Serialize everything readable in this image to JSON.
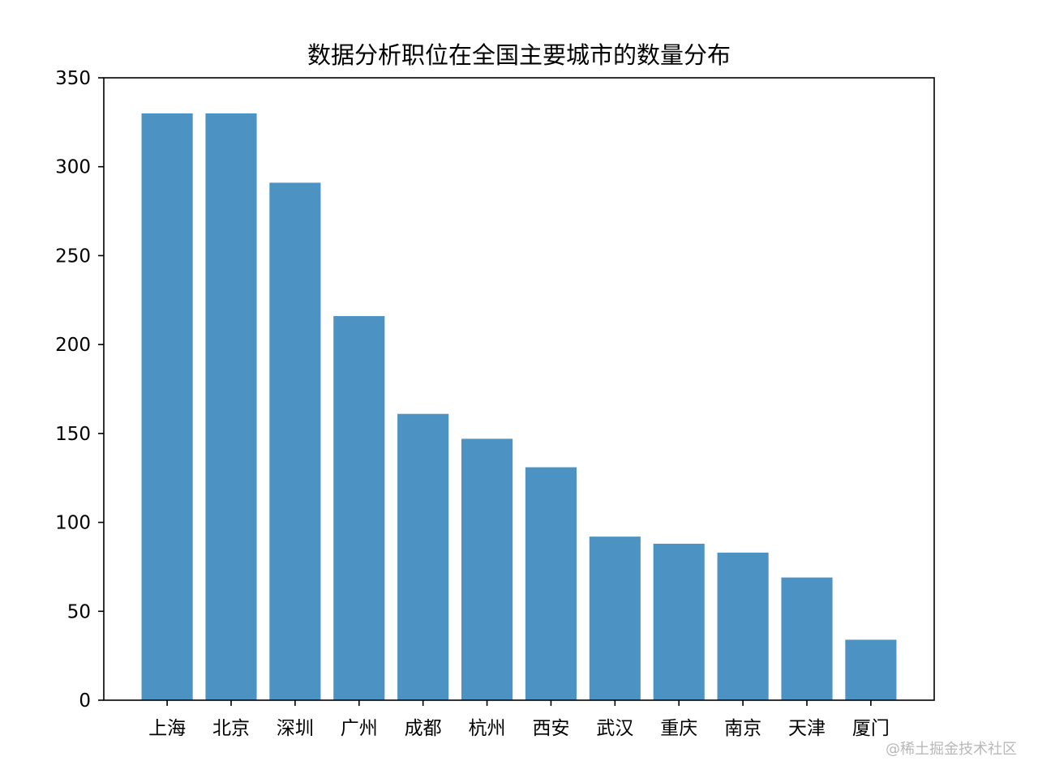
{
  "chart_data": {
    "type": "bar",
    "title": "数据分析职位在全国主要城市的数量分布",
    "xlabel": "",
    "ylabel": "",
    "categories": [
      "上海",
      "北京",
      "深圳",
      "广州",
      "成都",
      "杭州",
      "西安",
      "武汉",
      "重庆",
      "南京",
      "天津",
      "厦门"
    ],
    "values": [
      330,
      330,
      291,
      216,
      161,
      147,
      131,
      92,
      88,
      83,
      69,
      34
    ],
    "ylim": [
      0,
      350
    ],
    "yticks": [
      0,
      50,
      100,
      150,
      200,
      250,
      300,
      350
    ],
    "bar_color": "#4c92c3",
    "grid": false,
    "legend": "none"
  },
  "watermark": "@稀土掘金技术社区"
}
